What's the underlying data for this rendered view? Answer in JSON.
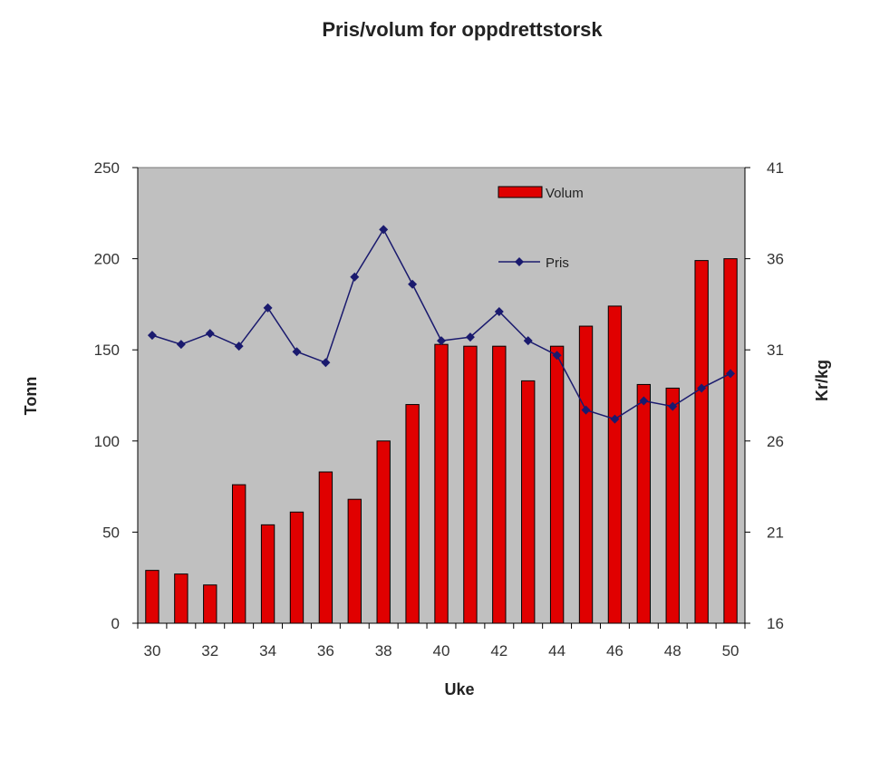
{
  "chart_data": {
    "type": "bar",
    "title": "Pris/volum for oppdrettstorsk",
    "xlabel": "Uke",
    "ylabel": "Tonn",
    "y2label": "Kr/kg",
    "x": [
      30,
      31,
      32,
      33,
      34,
      35,
      36,
      37,
      38,
      39,
      40,
      41,
      42,
      43,
      44,
      45,
      46,
      47,
      48,
      49,
      50
    ],
    "x_tick_labels": [
      "30",
      "32",
      "34",
      "36",
      "38",
      "40",
      "42",
      "44",
      "46",
      "48",
      "50"
    ],
    "ylim": [
      0,
      250
    ],
    "y_ticks": [
      "0",
      "50",
      "100",
      "150",
      "200",
      "250"
    ],
    "y2lim": [
      16,
      41
    ],
    "y2_ticks": [
      "16",
      "21",
      "26",
      "31",
      "36",
      "41"
    ],
    "grid": false,
    "legend_position": "top-right",
    "series": [
      {
        "name": "Volum",
        "type": "bar",
        "axis": "left",
        "color": "#e00000",
        "values": [
          29,
          27,
          21,
          76,
          54,
          61,
          83,
          68,
          100,
          120,
          153,
          152,
          152,
          133,
          152,
          163,
          174,
          131,
          129,
          199,
          200
        ]
      },
      {
        "name": "Pris",
        "type": "line",
        "axis": "right",
        "color": "#1a1a6e",
        "values": [
          31.8,
          31.3,
          31.9,
          31.2,
          33.3,
          30.9,
          30.3,
          35.0,
          37.6,
          34.6,
          31.5,
          31.7,
          33.1,
          31.5,
          30.7,
          27.7,
          27.2,
          28.2,
          27.9,
          28.9,
          29.7
        ]
      }
    ]
  }
}
